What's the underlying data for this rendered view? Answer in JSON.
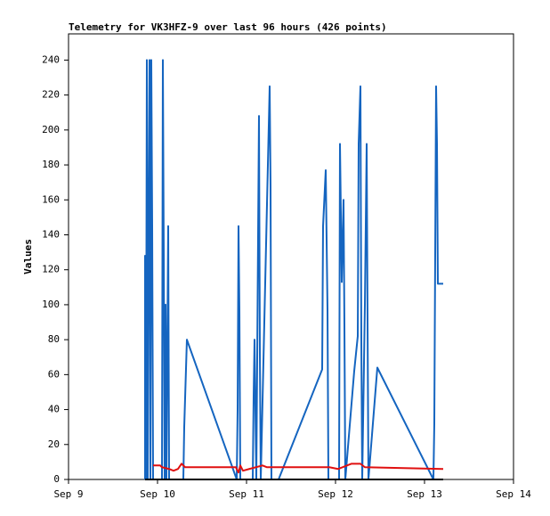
{
  "chart_data": {
    "type": "line",
    "title": "Telemetry for VK3HFZ-9 over last 96 hours (426 points)",
    "y_label": "Values",
    "xlim": [
      9,
      14
    ],
    "xticks": [
      {
        "value": 9,
        "label": "Sep 9"
      },
      {
        "value": 10,
        "label": "Sep 10"
      },
      {
        "value": 11,
        "label": "Sep 11"
      },
      {
        "value": 12,
        "label": "Sep 12"
      },
      {
        "value": 13,
        "label": "Sep 13"
      },
      {
        "value": 14,
        "label": "Sep 14"
      }
    ],
    "ylim": [
      0,
      255
    ],
    "yticks": [
      0,
      20,
      40,
      60,
      80,
      100,
      120,
      140,
      160,
      180,
      200,
      220,
      240
    ],
    "series": [
      {
        "color": "#1565c0",
        "x": [
          9.86,
          9.86,
          9.87,
          9.88,
          9.89,
          9.9,
          9.91,
          9.92,
          9.93,
          9.94,
          9.95,
          10.05,
          10.06,
          10.07,
          10.08,
          10.09,
          10.1,
          10.12,
          10.13,
          10.29,
          10.3,
          10.33,
          10.89,
          10.9,
          10.91,
          10.92,
          10.93,
          11.07,
          11.08,
          11.09,
          11.1,
          11.11,
          11.14,
          11.15,
          11.16,
          11.26,
          11.27,
          11.28,
          11.36,
          11.85,
          11.86,
          11.89,
          11.91,
          11.92,
          12.04,
          12.05,
          12.07,
          12.09,
          12.1,
          12.11,
          12.21,
          12.25,
          12.26,
          12.28,
          12.29,
          12.3,
          12.33,
          12.35,
          12.36,
          12.37,
          12.47,
          13.1,
          13.11,
          13.13,
          13.14,
          13.15,
          13.21
        ],
        "values": [
          0,
          128,
          0,
          240,
          0,
          145,
          240,
          0,
          240,
          145,
          0,
          0,
          240,
          128,
          0,
          100,
          0,
          145,
          0,
          0,
          30,
          80,
          0,
          40,
          145,
          97,
          0,
          0,
          48,
          80,
          40,
          0,
          208,
          72,
          0,
          225,
          168,
          0,
          0,
          63,
          145,
          177,
          97,
          0,
          0,
          192,
          113,
          160,
          88,
          0,
          62,
          82,
          192,
          225,
          80,
          0,
          100,
          192,
          90,
          0,
          64,
          0,
          32,
          225,
          192,
          112,
          112
        ]
      },
      {
        "color": "#e01010",
        "x": [
          9.95,
          10.03,
          10.05,
          10.13,
          10.18,
          10.23,
          10.27,
          10.31,
          10.88,
          10.91,
          10.93,
          10.96,
          11.03,
          11.18,
          11.23,
          11.93,
          12.03,
          12.18,
          12.28,
          12.33,
          13.21
        ],
        "values": [
          8,
          8,
          7,
          6,
          5,
          6,
          9,
          7,
          7,
          4,
          8,
          5,
          6,
          8,
          7,
          7,
          6,
          9,
          9,
          7,
          6
        ]
      },
      {
        "color": "#000000",
        "x": [
          9.86,
          13.21
        ],
        "values": [
          0,
          0
        ]
      }
    ]
  }
}
